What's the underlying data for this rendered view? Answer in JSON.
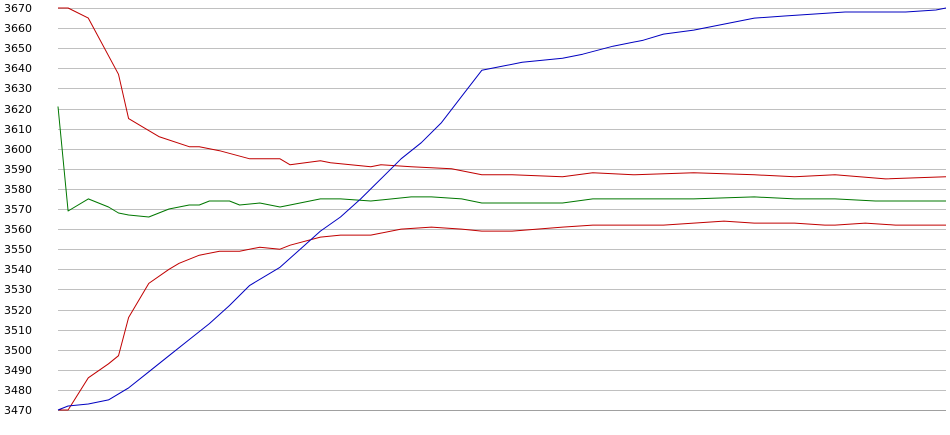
{
  "chart_data": {
    "type": "line",
    "title": "",
    "xlabel": "",
    "ylabel": "",
    "ylim": [
      3470,
      3670
    ],
    "xlim": [
      0,
      88
    ],
    "y_ticks": [
      3470,
      3480,
      3490,
      3500,
      3510,
      3520,
      3530,
      3540,
      3550,
      3560,
      3570,
      3580,
      3590,
      3600,
      3610,
      3620,
      3630,
      3640,
      3650,
      3660,
      3670
    ],
    "y_tick_labels": [
      "3470",
      "3480",
      "3490",
      "3500",
      "3510",
      "3520",
      "3530",
      "3540",
      "3550",
      "3560",
      "3570",
      "3580",
      "3590",
      "3600",
      "3610",
      "3620",
      "3630",
      "3640",
      "3650",
      "3660",
      "3670"
    ],
    "grid": true,
    "legend": "none",
    "series": [
      {
        "color": "#c00000",
        "x": [
          0,
          1,
          3,
          6,
          7,
          10,
          13,
          14,
          16,
          19,
          22,
          23,
          26,
          27,
          31,
          32,
          35,
          39,
          42,
          43,
          45,
          50,
          53,
          57,
          63,
          69,
          73,
          77,
          82,
          88
        ],
        "values": [
          3670,
          3670,
          3665,
          3637,
          3615,
          3606,
          3601,
          3601,
          3599,
          3595,
          3595,
          3592,
          3594,
          3593,
          3591,
          3592,
          3591,
          3590,
          3587,
          3587,
          3587,
          3586,
          3588,
          3587,
          3588,
          3587,
          3586,
          3587,
          3585,
          3586
        ]
      },
      {
        "color": "#007700",
        "x": [
          0,
          1,
          3,
          5,
          6,
          7,
          9,
          11,
          13,
          14,
          15,
          16,
          17,
          18,
          20,
          22,
          23,
          26,
          27,
          28,
          31,
          35,
          37,
          40,
          42,
          50,
          53,
          57,
          60,
          63,
          69,
          73,
          77,
          81,
          82,
          85,
          88
        ],
        "values": [
          3621,
          3569,
          3575,
          3571,
          3568,
          3567,
          3566,
          3570,
          3572,
          3572,
          3574,
          3574,
          3574,
          3572,
          3573,
          3571,
          3572,
          3575,
          3575,
          3575,
          3574,
          3576,
          3576,
          3575,
          3573,
          3573,
          3575,
          3575,
          3575,
          3575,
          3576,
          3575,
          3575,
          3574,
          3574,
          3574,
          3574
        ]
      },
      {
        "color": "#c00000",
        "x": [
          0,
          1,
          3,
          5,
          6,
          7,
          9,
          11,
          12,
          14,
          16,
          18,
          20,
          22,
          23,
          26,
          28,
          31,
          32,
          34,
          37,
          40,
          42,
          45,
          50,
          53,
          55,
          57,
          60,
          63,
          66,
          69,
          73,
          76,
          77,
          80,
          83,
          88
        ],
        "values": [
          3470,
          3470,
          3486,
          3493,
          3497,
          3516,
          3533,
          3540,
          3543,
          3547,
          3549,
          3549,
          3551,
          3550,
          3552,
          3556,
          3557,
          3557,
          3558,
          3560,
          3561,
          3560,
          3559,
          3559,
          3561,
          3562,
          3562,
          3562,
          3562,
          3563,
          3564,
          3563,
          3563,
          3562,
          3562,
          3563,
          3562,
          3562
        ]
      },
      {
        "color": "#0000c0",
        "x": [
          0,
          1,
          3,
          5,
          7,
          9,
          11,
          13,
          15,
          17,
          19,
          22,
          24,
          26,
          28,
          30,
          32,
          34,
          36,
          38,
          40,
          42,
          44,
          46,
          48,
          50,
          52,
          55,
          58,
          60,
          63,
          66,
          69,
          72,
          75,
          78,
          81,
          84,
          87,
          88
        ],
        "values": [
          3470,
          3472,
          3473,
          3475,
          3481,
          3489,
          3497,
          3505,
          3513,
          3522,
          3532,
          3541,
          3550,
          3559,
          3566,
          3575,
          3585,
          3595,
          3603,
          3613,
          3626,
          3639,
          3641,
          3643,
          3644,
          3645,
          3647,
          3651,
          3654,
          3657,
          3659,
          3662,
          3665,
          3666,
          3667,
          3668,
          3668,
          3668,
          3669,
          3670
        ]
      }
    ]
  }
}
